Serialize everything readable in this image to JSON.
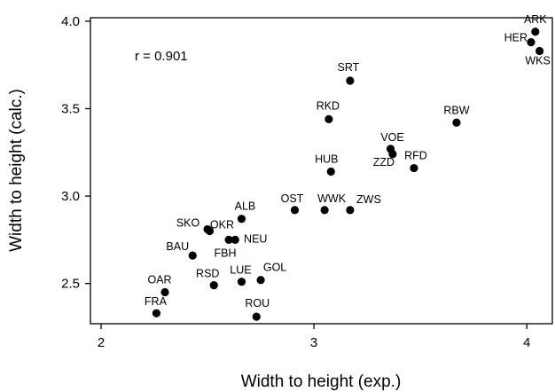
{
  "chart_data": {
    "type": "scatter",
    "title": "",
    "xlabel": "Width to height (exp.)",
    "ylabel": "Width to height (calc.)",
    "xlim": [
      1.95,
      4.12
    ],
    "ylim": [
      2.27,
      4.02
    ],
    "xticks": [
      2,
      3,
      4
    ],
    "xtick_labels": [
      "2",
      "3",
      "4"
    ],
    "yticks": [
      2.5,
      3.0,
      3.5,
      4.0
    ],
    "ytick_labels": [
      "2.5",
      "3.0",
      "3.5",
      "4.0"
    ],
    "grid": false,
    "annotation": "r = 0.901",
    "points": [
      {
        "label": "ARK",
        "x": 4.04,
        "y": 3.94
      },
      {
        "label": "HER",
        "x": 4.02,
        "y": 3.88
      },
      {
        "label": "WKS",
        "x": 4.06,
        "y": 3.83
      },
      {
        "label": "SRT",
        "x": 3.17,
        "y": 3.66
      },
      {
        "label": "RBW",
        "x": 3.67,
        "y": 3.42
      },
      {
        "label": "RKD",
        "x": 3.07,
        "y": 3.44
      },
      {
        "label": "VOE",
        "x": 3.36,
        "y": 3.27
      },
      {
        "label": "ZZD",
        "x": 3.37,
        "y": 3.24
      },
      {
        "label": "RFD",
        "x": 3.47,
        "y": 3.16
      },
      {
        "label": "HUB",
        "x": 3.08,
        "y": 3.14
      },
      {
        "label": "OST",
        "x": 2.91,
        "y": 2.92
      },
      {
        "label": "WWK",
        "x": 3.05,
        "y": 2.92
      },
      {
        "label": "ZWS",
        "x": 3.17,
        "y": 2.92
      },
      {
        "label": "ALB",
        "x": 2.66,
        "y": 2.87
      },
      {
        "label": "SKO",
        "x": 2.5,
        "y": 2.81
      },
      {
        "label": "OKR",
        "x": 2.51,
        "y": 2.8
      },
      {
        "label": "FBH",
        "x": 2.6,
        "y": 2.75
      },
      {
        "label": "NEU",
        "x": 2.63,
        "y": 2.75
      },
      {
        "label": "BAU",
        "x": 2.43,
        "y": 2.66
      },
      {
        "label": "GOL",
        "x": 2.75,
        "y": 2.52
      },
      {
        "label": "LUE",
        "x": 2.66,
        "y": 2.51
      },
      {
        "label": "RSD",
        "x": 2.53,
        "y": 2.49
      },
      {
        "label": "OAR",
        "x": 2.3,
        "y": 2.45
      },
      {
        "label": "FRA",
        "x": 2.26,
        "y": 2.33
      },
      {
        "label": "ROU",
        "x": 2.73,
        "y": 2.31
      }
    ]
  }
}
